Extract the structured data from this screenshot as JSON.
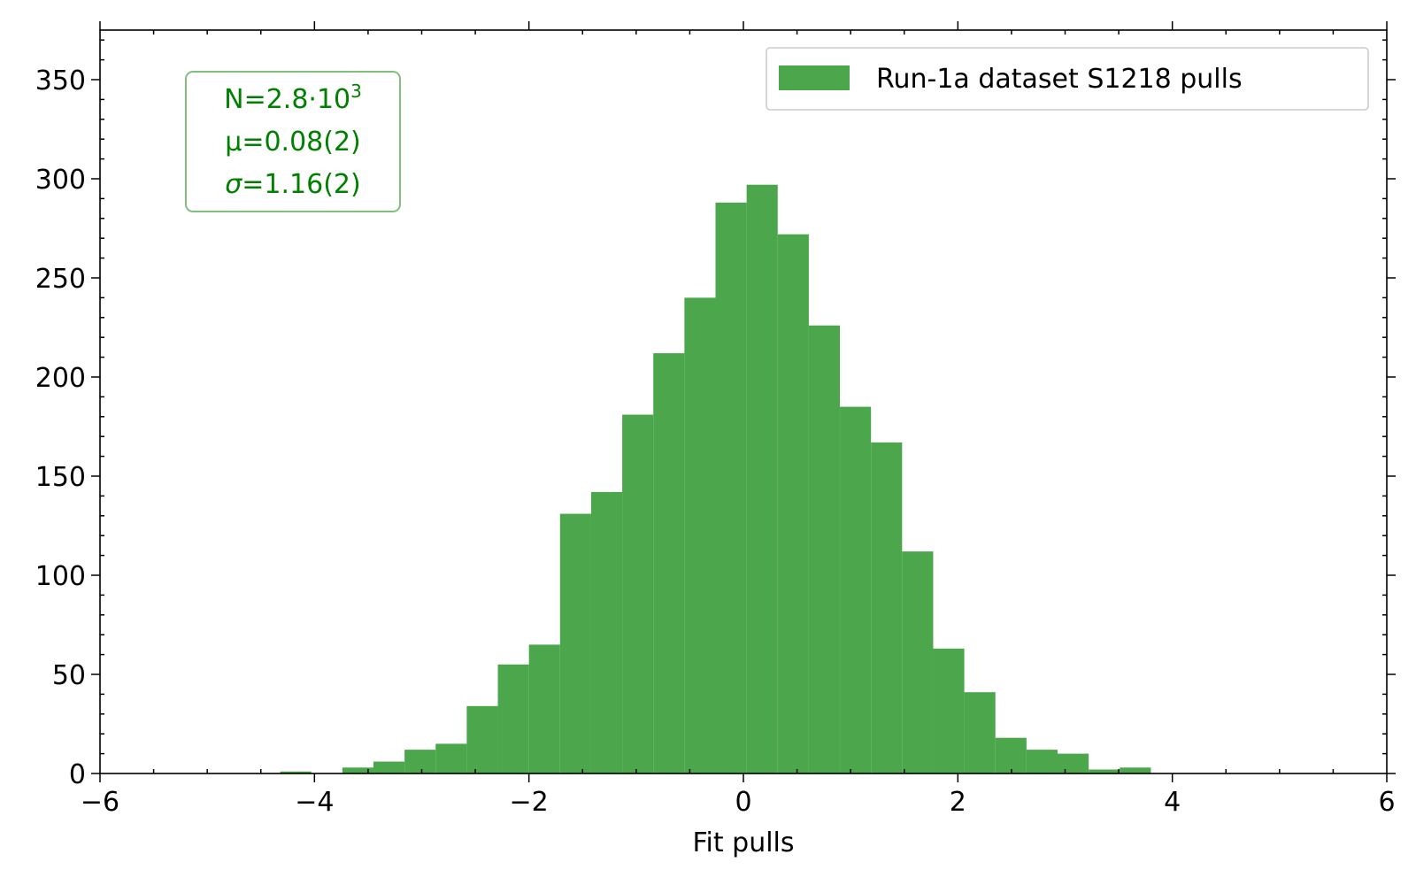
{
  "chart_data": {
    "type": "bar",
    "subtype": "histogram",
    "xlabel": "Fit pulls",
    "ylabel": "",
    "xlim": [
      -6,
      6
    ],
    "ylim": [
      0,
      375
    ],
    "xticks": [
      -6,
      -4,
      -2,
      0,
      2,
      4,
      6
    ],
    "xtick_labels": [
      "−6",
      "−4",
      "−2",
      "0",
      "2",
      "4",
      "6"
    ],
    "yticks": [
      0,
      50,
      100,
      150,
      200,
      250,
      300,
      350
    ],
    "ytick_labels": [
      "0",
      "50",
      "100",
      "150",
      "200",
      "250",
      "300",
      "350"
    ],
    "grid": false,
    "legend_position": "top-right",
    "color": "#4ca64c",
    "stats_color": "#008000",
    "series": [
      {
        "name": "Run-1a dataset S1218 pulls",
        "bin_edges": [
          -4.32,
          -4.03,
          -3.74,
          -3.45,
          -3.16,
          -2.87,
          -2.58,
          -2.29,
          -2.0,
          -1.71,
          -1.42,
          -1.13,
          -0.84,
          -0.55,
          -0.26,
          0.03,
          0.32,
          0.61,
          0.9,
          1.19,
          1.48,
          1.77,
          2.06,
          2.35,
          2.64,
          2.93,
          3.22,
          3.51,
          3.8
        ],
        "counts": [
          1,
          0,
          3,
          6,
          12,
          15,
          34,
          55,
          65,
          131,
          142,
          181,
          212,
          240,
          288,
          297,
          272,
          226,
          185,
          167,
          112,
          63,
          41,
          18,
          12,
          10,
          2,
          3
        ]
      }
    ],
    "stats": {
      "N_prefix": "N=2.8·10",
      "N_exp": "3",
      "mu": "μ=0.08(2)",
      "sigma_symbol": "σ",
      "sigma_value": "=1.16(2)"
    }
  }
}
